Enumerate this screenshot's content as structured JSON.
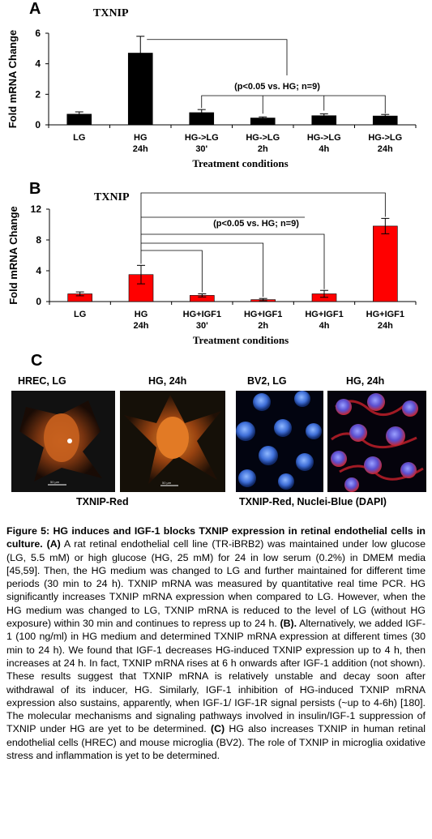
{
  "chart_data": [
    {
      "panel": "A",
      "type": "bar",
      "title": "TXNIP",
      "ylabel": "Fold mRNA Change",
      "xlabel": "Treatment conditions",
      "ylim": [
        0,
        6
      ],
      "yticks": [
        "0",
        "2",
        "4",
        "6"
      ],
      "categories": [
        [
          "LG",
          ""
        ],
        [
          "HG",
          "24h"
        ],
        [
          "HG->LG",
          "30'"
        ],
        [
          "HG->LG",
          "2h"
        ],
        [
          "HG->LG",
          "4h"
        ],
        [
          "HG->LG",
          "24h"
        ]
      ],
      "values": [
        0.7,
        4.7,
        0.8,
        0.45,
        0.6,
        0.58
      ],
      "errors": [
        0.15,
        1.1,
        0.2,
        0.07,
        0.12,
        0.1
      ],
      "bar_color": "#000000",
      "annotation": "(p<0.05 vs. HG; n=9)"
    },
    {
      "panel": "B",
      "type": "bar",
      "title": "TXNIP",
      "ylabel": "Fold mRNA Change",
      "xlabel": "Treatment conditions",
      "ylim": [
        0,
        12
      ],
      "yticks": [
        "0",
        "4",
        "8",
        "12"
      ],
      "categories": [
        [
          "LG",
          ""
        ],
        [
          "HG",
          "24h"
        ],
        [
          "HG+IGF1",
          "30'"
        ],
        [
          "HG+IGF1",
          "2h"
        ],
        [
          "HG+IGF1",
          "4h"
        ],
        [
          "HG+IGF1",
          "24h"
        ]
      ],
      "values": [
        1.0,
        3.5,
        0.8,
        0.25,
        1.0,
        9.8
      ],
      "errors": [
        0.25,
        1.2,
        0.2,
        0.15,
        0.45,
        1.0
      ],
      "bar_color": "#ff0000",
      "annotation": "(p<0.05 vs. HG; n=9)"
    }
  ],
  "panel_c": {
    "letter": "C",
    "labels": [
      "HREC, LG",
      "HG, 24h",
      "BV2,   LG",
      "HG, 24h"
    ],
    "group_labels": [
      "TXNIP-Red",
      "TXNIP-Red, Nuclei-Blue (DAPI)"
    ],
    "scalebar": "50 µm"
  },
  "caption": {
    "heading": "Figure 5: HG induces and IGF-1 blocks TXNIP expression in retinal endothelial cells in culture.",
    "a_marker": "(A)",
    "a_text": " A rat retinal endothelial cell line (TR-iBRB2) was maintained under low glucose (LG, 5.5 mM) or high glucose (HG, 25 mM) for 24 in low serum (0.2%) in DMEM media [45,59]. Then, the HG medium was changed to LG and further maintained for different time periods (30 min to 24 h). TXNIP mRNA was measured by quantitative real time PCR. HG significantly increases TXNIP mRNA expression when compared to LG. However, when the HG medium was changed to LG, TXNIP mRNA is reduced to the level of LG (without HG exposure) within 30 min and continues to repress up to 24 h.",
    "b_marker": "(B).",
    "b_text": " Alternatively, we added IGF-1 (100 ng/ml) in HG medium and determined TXNIP mRNA expression at different times (30 min to 24 h). We found that IGF-1 decreases HG-induced TXNIP expression up to 4 h, then increases at 24 h. In fact, TXNIP mRNA rises at 6 h onwards after IGF-1 addition (not shown). These results suggest that TXNIP mRNA is relatively unstable and decay soon after withdrawal of its inducer, HG. Similarly, IGF-1 inhibition of HG-induced TXNIP mRNA expression also sustains, apparently, when IGF-1/ IGF-1R signal persists (~up to 4-6h) [180]. The molecular mechanisms and signaling pathways involved in insulin/IGF-1 suppression of TXNIP under HG are yet to be determined.",
    "c_marker": "(C)",
    "c_text": " HG also increases TXNIP in human retinal endothelial cells (HREC) and mouse microglia (BV2). The role of TXNIP in microglia oxidative stress and inflammation is yet to be determined."
  }
}
